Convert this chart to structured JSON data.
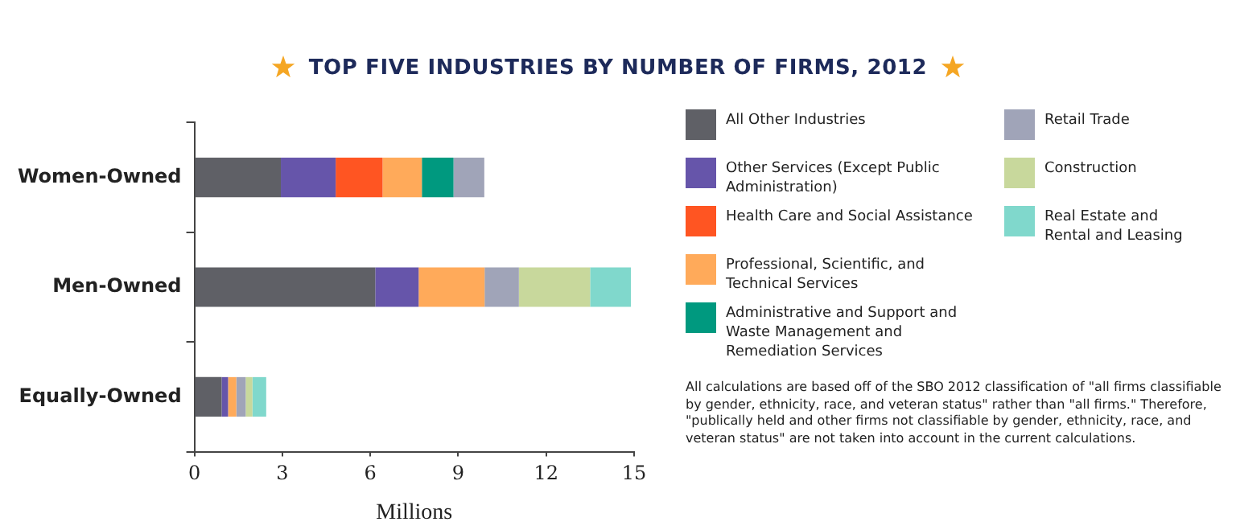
{
  "chart_data": {
    "type": "bar",
    "orientation": "horizontal",
    "stacked": true,
    "title": "TOP FIVE INDUSTRIES BY NUMBER OF FIRMS, 2012",
    "xlabel": "Millions",
    "categories": [
      "Women-Owned",
      "Men-Owned",
      "Equally-Owned"
    ],
    "series": [
      {
        "name": "All Other Industries",
        "color": "#5f6066",
        "values": [
          2.95,
          6.17,
          0.93
        ]
      },
      {
        "name": "Other Services (Except Public Administration)",
        "color": "#6655aa",
        "values": [
          1.87,
          1.48,
          0.22
        ]
      },
      {
        "name": "Health Care and Social Assistance",
        "color": "#ff5522",
        "values": [
          1.6,
          null,
          null
        ]
      },
      {
        "name": "Professional, Scientific, and Technical Services",
        "color": "#ffaa5a",
        "values": [
          1.34,
          2.25,
          0.28
        ]
      },
      {
        "name": "Administrative and Support and Waste Management and Remediation Services",
        "color": "#00997f",
        "values": [
          1.08,
          null,
          null
        ]
      },
      {
        "name": "Retail Trade",
        "color": "#a0a4b8",
        "values": [
          1.05,
          1.17,
          0.32
        ]
      },
      {
        "name": "Construction",
        "color": "#c8d89c",
        "values": [
          null,
          2.43,
          0.23
        ]
      },
      {
        "name": "Real Estate and Rental and Leasing",
        "color": "#80d8cc",
        "values": [
          null,
          1.39,
          0.47
        ]
      }
    ],
    "xlim": [
      0,
      15
    ],
    "xticks": [
      0,
      3,
      6,
      9,
      12,
      15
    ],
    "grid": false,
    "legend": "right",
    "annotations": [
      "All calculations are based off of the SBO 2012 classification of \"all firms classifiable by gender, ethnicity, race, and veteran status\" rather than \"all firms.\" Therefore, \"publically held and other firms not classifiable by gender, ethnicity, race, and veteran status\" are not taken into account in the current calculations."
    ]
  }
}
